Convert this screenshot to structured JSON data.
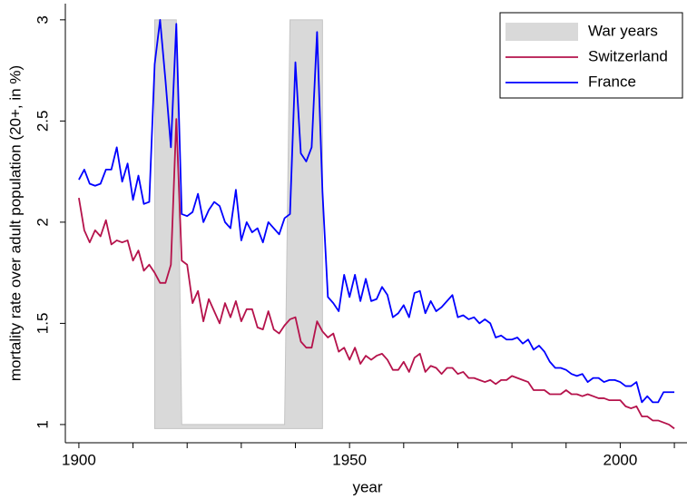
{
  "chart_data": {
    "type": "line",
    "xlabel": "year",
    "ylabel": "mortality rate over adult population (20+, in %)",
    "xlim": [
      1897.5,
      2012
    ],
    "ylim": [
      0.91,
      3.08
    ],
    "xticks": [
      1900,
      1950,
      2000
    ],
    "xminorticks": [
      1910,
      1920,
      1930,
      1940,
      1960,
      1970,
      1980,
      1990,
      2010
    ],
    "yticks": [
      1,
      1.5,
      2,
      2.5,
      3
    ],
    "legend": "top-right",
    "x": [
      1900,
      1901,
      1902,
      1903,
      1904,
      1905,
      1906,
      1907,
      1908,
      1909,
      1910,
      1911,
      1912,
      1913,
      1914,
      1915,
      1916,
      1917,
      1918,
      1919,
      1920,
      1921,
      1922,
      1923,
      1924,
      1925,
      1926,
      1927,
      1928,
      1929,
      1930,
      1931,
      1932,
      1933,
      1934,
      1935,
      1936,
      1937,
      1938,
      1939,
      1940,
      1941,
      1942,
      1943,
      1944,
      1945,
      1946,
      1947,
      1948,
      1949,
      1950,
      1951,
      1952,
      1953,
      1954,
      1955,
      1956,
      1957,
      1958,
      1959,
      1960,
      1961,
      1962,
      1963,
      1964,
      1965,
      1966,
      1967,
      1968,
      1969,
      1970,
      1971,
      1972,
      1973,
      1974,
      1975,
      1976,
      1977,
      1978,
      1979,
      1980,
      1981,
      1982,
      1983,
      1984,
      1985,
      1986,
      1987,
      1988,
      1989,
      1990,
      1991,
      1992,
      1993,
      1994,
      1995,
      1996,
      1997,
      1998,
      1999,
      2000,
      2001,
      2002,
      2003,
      2004,
      2005,
      2006,
      2007,
      2008,
      2009,
      2010
    ],
    "series": [
      {
        "name": "War years",
        "type": "area",
        "color": "#d9d9d9",
        "area_base": 0.98,
        "x": [
          1914,
          1915,
          1916,
          1917,
          1918,
          1919,
          1920,
          1921,
          1922,
          1923,
          1924,
          1925,
          1926,
          1927,
          1928,
          1929,
          1930,
          1931,
          1932,
          1933,
          1934,
          1935,
          1936,
          1937,
          1938,
          1939,
          1940,
          1941,
          1942,
          1943,
          1944,
          1945
        ],
        "values": [
          3,
          3,
          3,
          3,
          3,
          1,
          1,
          1,
          1,
          1,
          1,
          1,
          1,
          1,
          1,
          1,
          1,
          1,
          1,
          1,
          1,
          1,
          1,
          1,
          1,
          3,
          3,
          3,
          3,
          3,
          3,
          3
        ]
      },
      {
        "name": "Switzerland",
        "color": "#b5124b",
        "values": [
          2.12,
          1.96,
          1.9,
          1.96,
          1.93,
          2.01,
          1.89,
          1.91,
          1.9,
          1.91,
          1.81,
          1.86,
          1.76,
          1.79,
          1.75,
          1.7,
          1.7,
          1.79,
          2.51,
          1.81,
          1.79,
          1.6,
          1.66,
          1.51,
          1.62,
          1.56,
          1.5,
          1.6,
          1.53,
          1.61,
          1.51,
          1.57,
          1.57,
          1.48,
          1.47,
          1.56,
          1.47,
          1.45,
          1.49,
          1.52,
          1.53,
          1.41,
          1.38,
          1.38,
          1.51,
          1.46,
          1.43,
          1.45,
          1.36,
          1.38,
          1.32,
          1.38,
          1.3,
          1.34,
          1.32,
          1.34,
          1.35,
          1.32,
          1.27,
          1.27,
          1.31,
          1.26,
          1.33,
          1.35,
          1.26,
          1.29,
          1.28,
          1.25,
          1.28,
          1.28,
          1.25,
          1.26,
          1.23,
          1.23,
          1.22,
          1.21,
          1.22,
          1.2,
          1.22,
          1.22,
          1.24,
          1.23,
          1.22,
          1.21,
          1.17,
          1.17,
          1.17,
          1.15,
          1.15,
          1.15,
          1.17,
          1.15,
          1.15,
          1.14,
          1.15,
          1.14,
          1.13,
          1.13,
          1.12,
          1.12,
          1.12,
          1.09,
          1.08,
          1.09,
          1.04,
          1.04,
          1.02,
          1.02,
          1.01,
          1.0,
          0.98
        ]
      },
      {
        "name": "France",
        "color": "#0000ff",
        "values": [
          2.21,
          2.26,
          2.19,
          2.18,
          2.19,
          2.26,
          2.26,
          2.37,
          2.2,
          2.29,
          2.11,
          2.23,
          2.09,
          2.1,
          2.78,
          3.0,
          2.7,
          2.37,
          2.98,
          2.04,
          2.03,
          2.05,
          2.14,
          2.0,
          2.06,
          2.1,
          2.08,
          2.0,
          1.97,
          2.16,
          1.91,
          2.0,
          1.95,
          1.97,
          1.9,
          2.0,
          1.97,
          1.94,
          2.02,
          2.04,
          2.79,
          2.34,
          2.3,
          2.37,
          2.94,
          2.15,
          1.63,
          1.6,
          1.56,
          1.74,
          1.63,
          1.74,
          1.61,
          1.72,
          1.61,
          1.62,
          1.68,
          1.64,
          1.53,
          1.55,
          1.59,
          1.53,
          1.65,
          1.66,
          1.55,
          1.61,
          1.56,
          1.58,
          1.61,
          1.64,
          1.53,
          1.54,
          1.52,
          1.53,
          1.5,
          1.52,
          1.5,
          1.43,
          1.44,
          1.42,
          1.42,
          1.43,
          1.4,
          1.42,
          1.37,
          1.39,
          1.36,
          1.31,
          1.28,
          1.28,
          1.27,
          1.25,
          1.24,
          1.25,
          1.21,
          1.23,
          1.23,
          1.21,
          1.22,
          1.22,
          1.21,
          1.19,
          1.19,
          1.21,
          1.11,
          1.14,
          1.11,
          1.11,
          1.16,
          1.16,
          1.16
        ]
      }
    ]
  }
}
